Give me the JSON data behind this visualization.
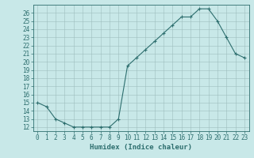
{
  "x": [
    0,
    1,
    2,
    3,
    4,
    5,
    6,
    7,
    8,
    9,
    10,
    11,
    12,
    13,
    14,
    15,
    16,
    17,
    18,
    19,
    20,
    21,
    22,
    23
  ],
  "y": [
    15.0,
    14.5,
    13.0,
    12.5,
    12.0,
    12.0,
    12.0,
    12.0,
    12.0,
    13.0,
    19.5,
    20.5,
    21.5,
    22.5,
    23.5,
    24.5,
    25.5,
    25.5,
    26.5,
    26.5,
    25.0,
    23.0,
    21.0,
    20.5
  ],
  "line_color": "#2d6e6e",
  "marker": "+",
  "marker_size": 3,
  "marker_lw": 0.8,
  "line_width": 0.8,
  "bg_color": "#c8e8e8",
  "grid_color": "#9dbdbd",
  "xlabel": "Humidex (Indice chaleur)",
  "xlim": [
    -0.5,
    23.5
  ],
  "ylim": [
    11.5,
    27.0
  ],
  "yticks": [
    12,
    13,
    14,
    15,
    16,
    17,
    18,
    19,
    20,
    21,
    22,
    23,
    24,
    25,
    26
  ],
  "xticks": [
    0,
    1,
    2,
    3,
    4,
    5,
    6,
    7,
    8,
    9,
    10,
    11,
    12,
    13,
    14,
    15,
    16,
    17,
    18,
    19,
    20,
    21,
    22,
    23
  ],
  "tick_label_size": 5.5,
  "xlabel_size": 6.5,
  "axis_color": "#2d6e6e",
  "spine_lw": 0.6
}
